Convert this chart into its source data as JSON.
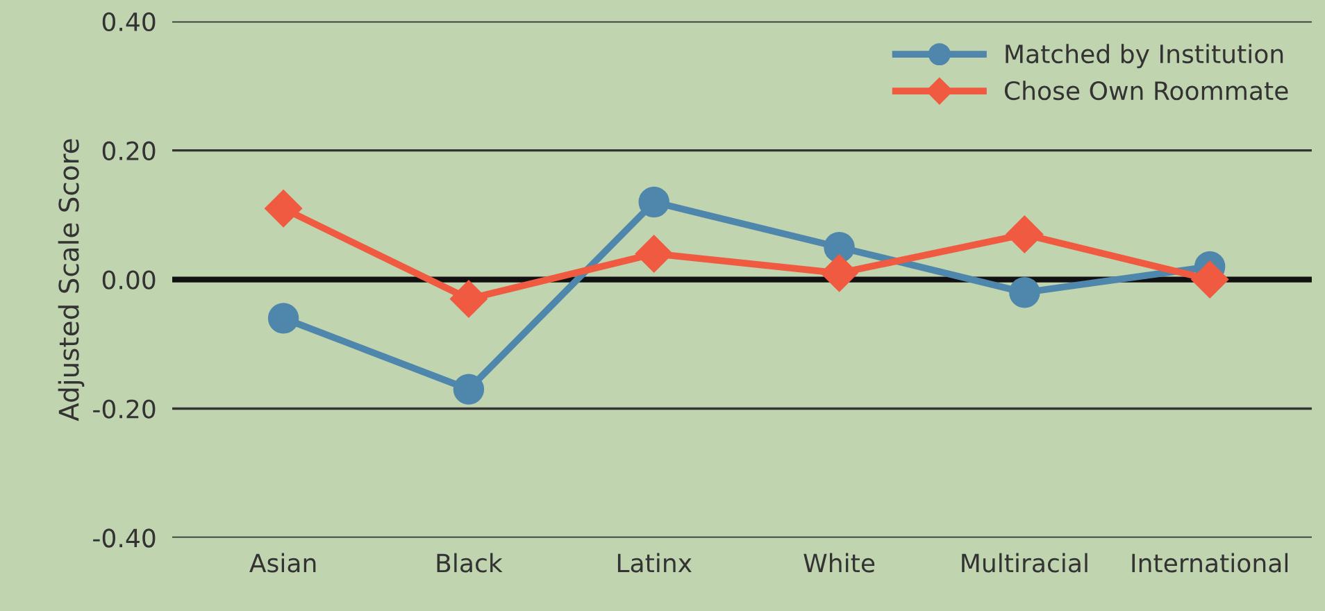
{
  "chart_data": {
    "type": "line",
    "ylabel": "Adjusted Scale Score",
    "categories": [
      "Asian",
      "Black",
      "Latinx",
      "White",
      "Multiracial",
      "International"
    ],
    "series": [
      {
        "name": "Matched by Institution",
        "color": "#4f86ab",
        "marker": "circle",
        "values": [
          -0.06,
          -0.17,
          0.12,
          0.05,
          -0.02,
          0.02
        ]
      },
      {
        "name": "Chose Own Roommate",
        "color": "#f05a40",
        "marker": "diamond",
        "values": [
          0.11,
          -0.03,
          0.04,
          0.01,
          0.07,
          0.0
        ]
      }
    ],
    "ylim": [
      -0.4,
      0.4
    ],
    "yticks": [
      {
        "value": -0.4,
        "label": "-0.40"
      },
      {
        "value": -0.2,
        "label": "-0.20"
      },
      {
        "value": 0,
        "label": "0.00"
      },
      {
        "value": 0.2,
        "label": "0.20"
      },
      {
        "value": 0.4,
        "label": "0.40"
      }
    ],
    "ref_lines": [
      {
        "axis": "y",
        "value": 0,
        "color": "#111111"
      }
    ],
    "grid": "y",
    "legend": "top right",
    "line_style": "solid"
  }
}
